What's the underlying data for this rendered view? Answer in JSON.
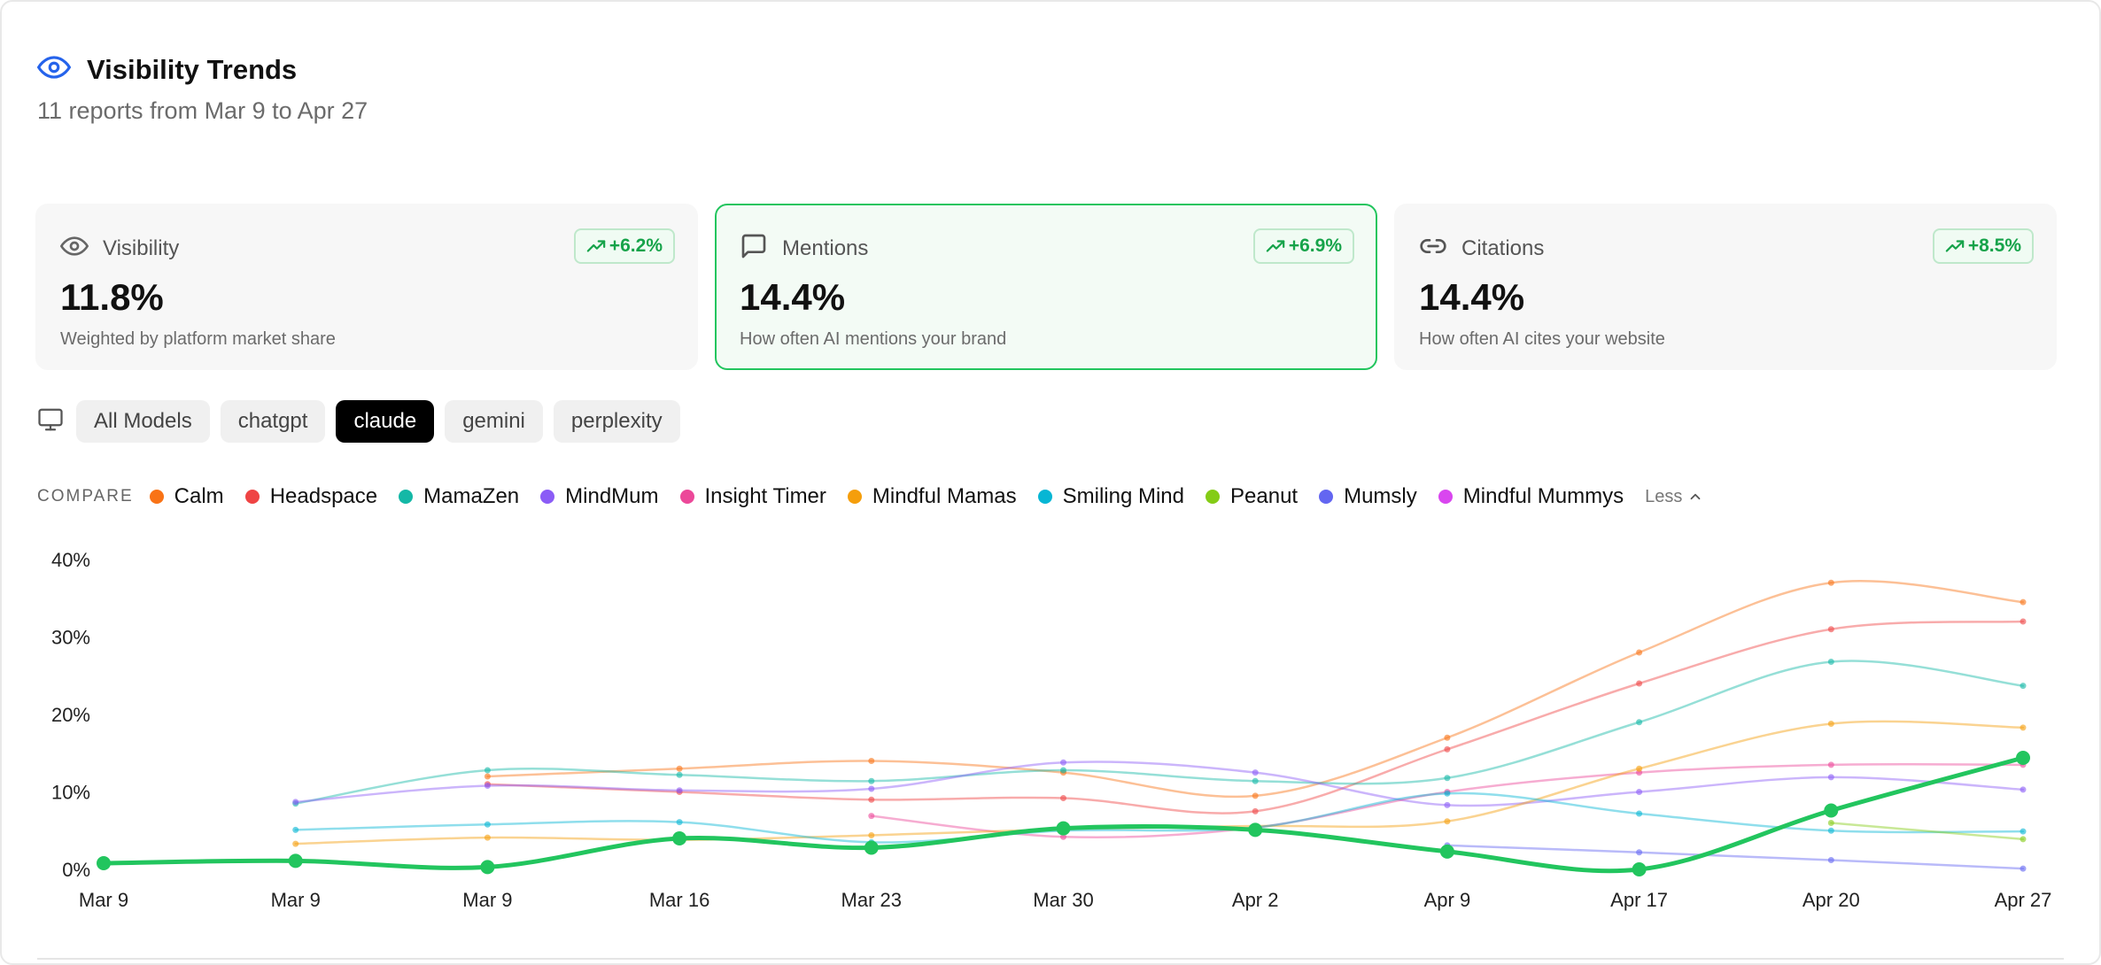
{
  "header": {
    "title": "Visibility Trends",
    "subtitle": "11 reports from Mar 9 to Apr 27",
    "icon": "eye-icon",
    "icon_color": "#2563eb"
  },
  "cards": [
    {
      "label": "Visibility",
      "value": "11.8%",
      "badge": "+6.2%",
      "description": "Weighted by platform market share",
      "icon": "eye-icon"
    },
    {
      "label": "Mentions",
      "value": "14.4%",
      "badge": "+6.9%",
      "description": "How often AI mentions your brand",
      "icon": "message-icon"
    },
    {
      "label": "Citations",
      "value": "14.4%",
      "badge": "+8.5%",
      "description": "How often AI cites your website",
      "icon": "link-icon"
    }
  ],
  "models": {
    "icon": "monitor-icon",
    "options": [
      "All Models",
      "chatgpt",
      "claude",
      "gemini",
      "perplexity"
    ],
    "selected": "claude"
  },
  "compare": {
    "label": "COMPARE",
    "less_label": "Less"
  },
  "colors": {
    "accent": "#22c55e",
    "badge_text": "#16a34a"
  },
  "chart_data": {
    "type": "line",
    "x": [
      "Mar 9",
      "Mar 9",
      "Mar 9",
      "Mar 16",
      "Mar 23",
      "Mar 30",
      "Apr 2",
      "Apr 9",
      "Apr 17",
      "Apr 20",
      "Apr 27"
    ],
    "yticks": [
      "0%",
      "10%",
      "20%",
      "30%",
      "40%"
    ],
    "ylim": [
      0,
      40
    ],
    "grid": false,
    "series": [
      {
        "name": "Calm",
        "color": "#f97316",
        "values": [
          null,
          null,
          12,
          13,
          14,
          12.5,
          9.5,
          17,
          28,
          37,
          34.5
        ]
      },
      {
        "name": "Headspace",
        "color": "#ef4444",
        "values": [
          null,
          null,
          11,
          10,
          9,
          9.2,
          7.5,
          15.5,
          24,
          31,
          32
        ]
      },
      {
        "name": "MamaZen",
        "color": "#14b8a6",
        "values": [
          null,
          8.5,
          12.8,
          12.2,
          11.4,
          12.8,
          11.4,
          11.8,
          19,
          26.8,
          23.7
        ]
      },
      {
        "name": "MindMum",
        "color": "#8b5cf6",
        "values": [
          null,
          8.7,
          10.8,
          10.2,
          10.4,
          13.8,
          12.5,
          8.3,
          10,
          11.9,
          10.3
        ]
      },
      {
        "name": "Insight Timer",
        "color": "#ec4899",
        "values": [
          null,
          null,
          null,
          null,
          6.9,
          4.2,
          5.4,
          10,
          12.5,
          13.5,
          13.5
        ]
      },
      {
        "name": "Mindful Mamas",
        "color": "#f59e0b",
        "values": [
          null,
          3.3,
          4.1,
          3.8,
          4.4,
          5.2,
          5.6,
          6.2,
          13,
          18.8,
          18.3
        ]
      },
      {
        "name": "Smiling Mind",
        "color": "#06b6d4",
        "values": [
          null,
          5.1,
          5.8,
          6.1,
          3.5,
          5,
          5.4,
          9.8,
          7.2,
          5,
          4.9
        ]
      },
      {
        "name": "Peanut",
        "color": "#84cc16",
        "values": [
          null,
          null,
          null,
          null,
          null,
          null,
          null,
          null,
          null,
          6,
          3.9
        ]
      },
      {
        "name": "Mumsly",
        "color": "#6366f1",
        "values": [
          null,
          null,
          null,
          null,
          null,
          null,
          null,
          3.1,
          2.2,
          1.2,
          0.1
        ]
      },
      {
        "name": "Mindful Mummys",
        "color": "#d946ef",
        "values": [
          null,
          null,
          null,
          null,
          null,
          null,
          null,
          null,
          null,
          null,
          null
        ]
      },
      {
        "name": "",
        "color": "#22c55e",
        "highlight": true,
        "values": [
          0.8,
          1.1,
          0.3,
          4,
          2.8,
          5.3,
          5.1,
          2.3,
          0,
          7.6,
          14.4
        ]
      }
    ]
  }
}
